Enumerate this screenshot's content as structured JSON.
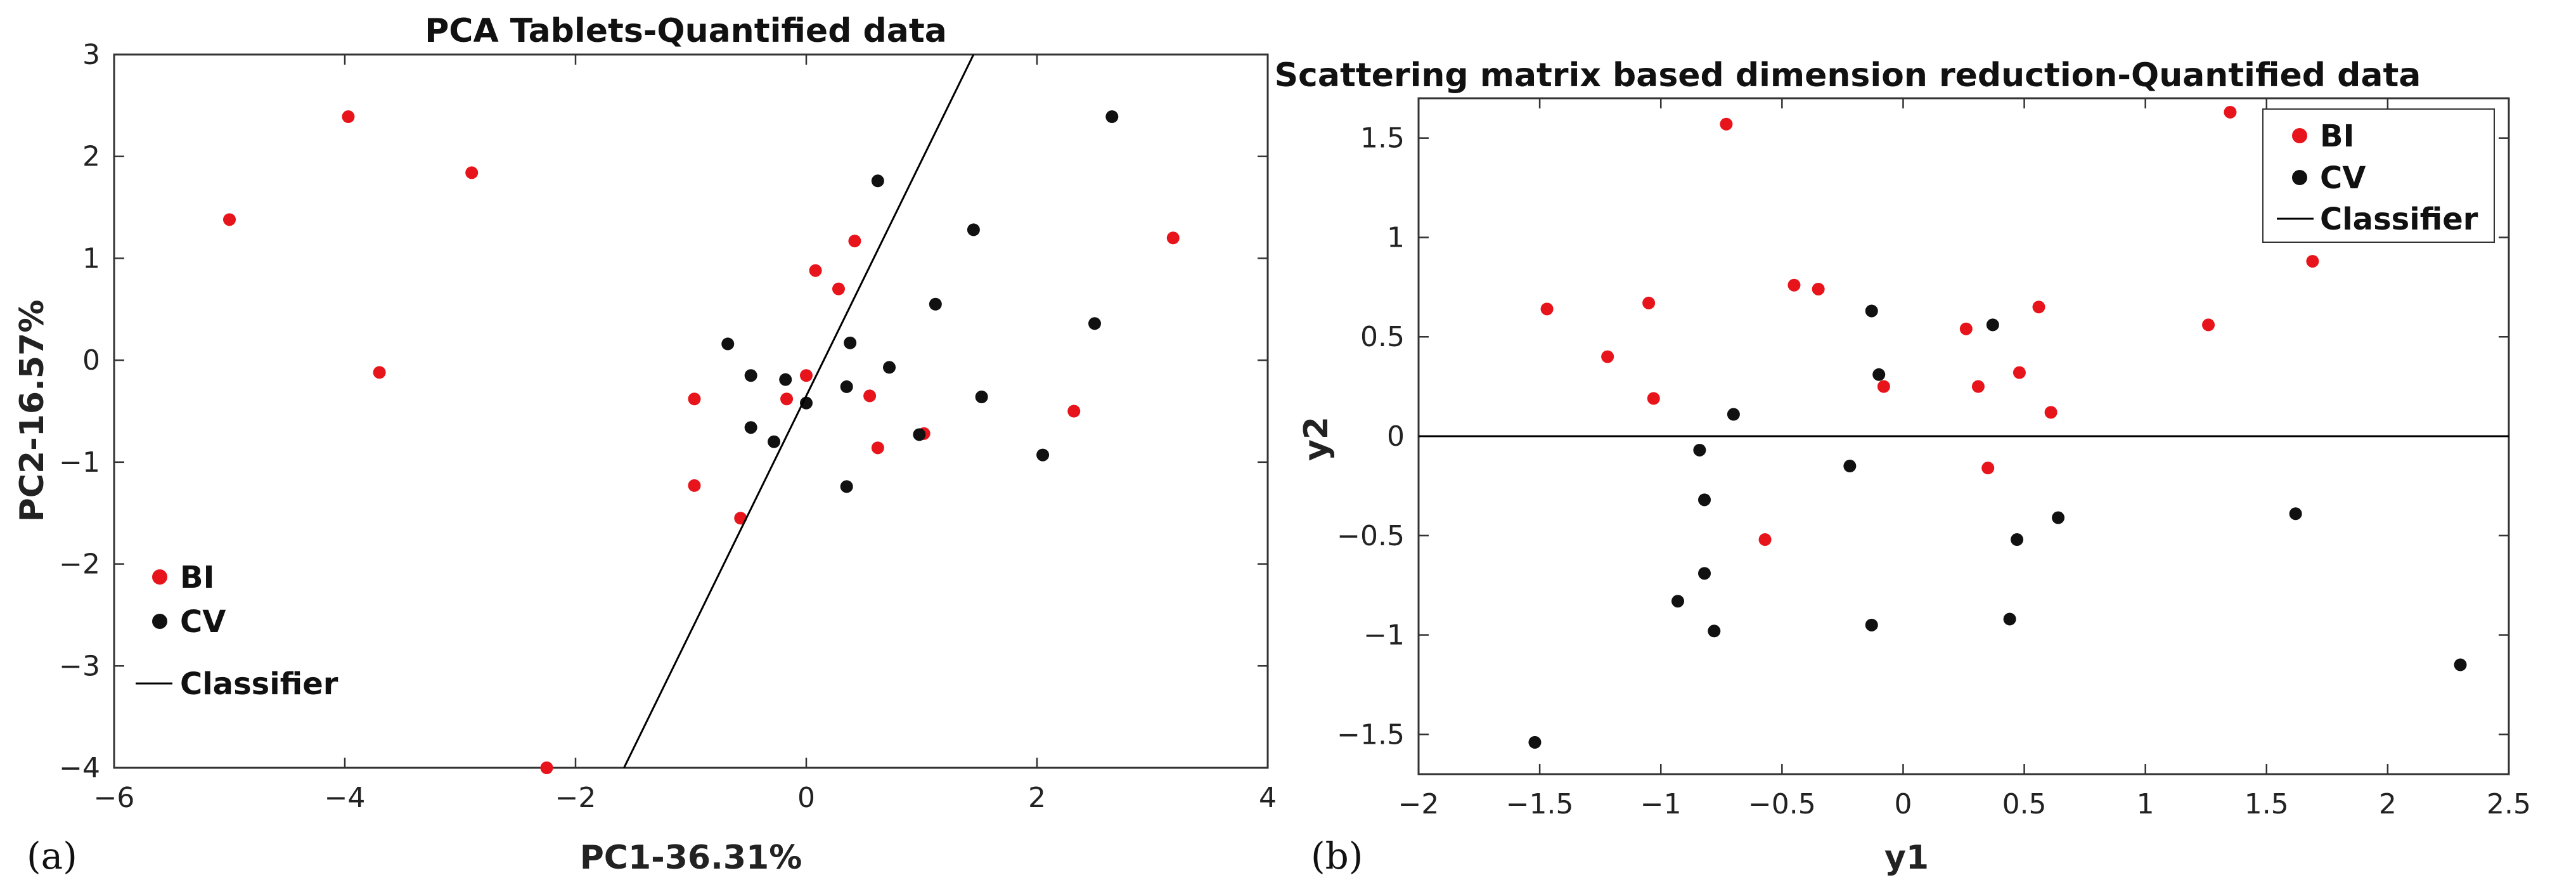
{
  "chart_data": [
    {
      "type": "scatter",
      "panel_label": "(a)",
      "title": "PCA Tablets-Quantified data",
      "xlabel": "PC1-36.31%",
      "ylabel": "PC2-16.57%",
      "xlim": [
        -6,
        4
      ],
      "ylim": [
        -4,
        3
      ],
      "xticks": [
        -6,
        -4,
        -2,
        0,
        2,
        4
      ],
      "yticks": [
        -4,
        -3,
        -2,
        -1,
        0,
        1,
        2,
        3
      ],
      "xtick_labels": [
        "−6",
        "−4",
        "−2",
        "0",
        "2",
        "4"
      ],
      "ytick_labels": [
        "−4",
        "−3",
        "−2",
        "−1",
        "0",
        "1",
        "2",
        "3"
      ],
      "legend_position": "bottom-left",
      "series": [
        {
          "name": "BI",
          "color": "#e8141b",
          "points": [
            [
              -5.0,
              1.38
            ],
            [
              -3.97,
              2.39
            ],
            [
              -2.9,
              1.84
            ],
            [
              -3.7,
              -0.12
            ],
            [
              -2.25,
              -4.0
            ],
            [
              -0.97,
              -0.38
            ],
            [
              -0.97,
              -1.23
            ],
            [
              -0.57,
              -1.55
            ],
            [
              -0.17,
              -0.38
            ],
            [
              0.0,
              -0.15
            ],
            [
              0.08,
              0.88
            ],
            [
              0.28,
              0.7
            ],
            [
              0.42,
              1.17
            ],
            [
              0.55,
              -0.35
            ],
            [
              0.62,
              -0.86
            ],
            [
              1.02,
              -0.72
            ],
            [
              2.32,
              -0.5
            ],
            [
              3.18,
              1.2
            ]
          ]
        },
        {
          "name": "CV",
          "color": "#111111",
          "points": [
            [
              -0.68,
              0.16
            ],
            [
              -0.48,
              -0.15
            ],
            [
              -0.48,
              -0.66
            ],
            [
              -0.28,
              -0.8
            ],
            [
              -0.18,
              -0.19
            ],
            [
              0.0,
              -0.42
            ],
            [
              0.35,
              -0.26
            ],
            [
              0.38,
              0.17
            ],
            [
              0.35,
              -1.24
            ],
            [
              0.62,
              1.76
            ],
            [
              0.72,
              -0.07
            ],
            [
              0.98,
              -0.73
            ],
            [
              1.12,
              0.55
            ],
            [
              1.45,
              1.28
            ],
            [
              1.52,
              -0.36
            ],
            [
              2.05,
              -0.93
            ],
            [
              2.5,
              0.36
            ],
            [
              2.65,
              2.39
            ]
          ]
        },
        {
          "name": "Classifier",
          "type": "line",
          "color": "#000000",
          "points": [
            [
              -1.58,
              -4.0
            ],
            [
              1.45,
              3.0
            ]
          ]
        }
      ]
    },
    {
      "type": "scatter",
      "panel_label": "(b)",
      "title": "Scattering matrix based dimension reduction-Quantified data",
      "xlabel": "y1",
      "ylabel": "y2",
      "xlim": [
        -2,
        2.5
      ],
      "ylim": [
        -1.7,
        1.7
      ],
      "xticks": [
        -2,
        -1.5,
        -1,
        -0.5,
        0,
        0.5,
        1,
        1.5,
        2,
        2.5
      ],
      "yticks": [
        -1.5,
        -1,
        -0.5,
        0,
        0.5,
        1,
        1.5
      ],
      "xtick_labels": [
        "−2",
        "−1.5",
        "−1",
        "−0.5",
        "0",
        "0.5",
        "1",
        "1.5",
        "2",
        "2.5"
      ],
      "ytick_labels": [
        "−1.5",
        "−1",
        "−0.5",
        "0",
        "0.5",
        "1",
        "1.5"
      ],
      "legend_position": "top-right",
      "series": [
        {
          "name": "BI",
          "color": "#e8141b",
          "points": [
            [
              -1.47,
              0.64
            ],
            [
              -1.22,
              0.4
            ],
            [
              -1.05,
              0.67
            ],
            [
              -1.03,
              0.19
            ],
            [
              -0.73,
              1.57
            ],
            [
              -0.57,
              -0.52
            ],
            [
              -0.45,
              0.76
            ],
            [
              -0.35,
              0.74
            ],
            [
              -0.08,
              0.25
            ],
            [
              0.26,
              0.54
            ],
            [
              0.31,
              0.25
            ],
            [
              0.35,
              -0.16
            ],
            [
              0.48,
              0.32
            ],
            [
              0.56,
              0.65
            ],
            [
              0.61,
              0.12
            ],
            [
              1.26,
              0.56
            ],
            [
              1.35,
              1.63
            ],
            [
              1.69,
              0.88
            ]
          ]
        },
        {
          "name": "CV",
          "color": "#111111",
          "points": [
            [
              -1.52,
              -1.54
            ],
            [
              -0.93,
              -0.83
            ],
            [
              -0.84,
              -0.07
            ],
            [
              -0.82,
              -0.32
            ],
            [
              -0.82,
              -0.69
            ],
            [
              -0.78,
              -0.98
            ],
            [
              -0.7,
              0.11
            ],
            [
              -0.22,
              -0.15
            ],
            [
              -0.13,
              0.63
            ],
            [
              -0.13,
              -0.95
            ],
            [
              -0.1,
              0.31
            ],
            [
              0.37,
              0.56
            ],
            [
              0.44,
              -0.92
            ],
            [
              0.47,
              -0.52
            ],
            [
              0.64,
              -0.41
            ],
            [
              1.62,
              -0.39
            ],
            [
              2.3,
              -1.15
            ]
          ]
        },
        {
          "name": "Classifier",
          "type": "line",
          "color": "#000000",
          "points": [
            [
              -2,
              0
            ],
            [
              2.5,
              0
            ]
          ]
        }
      ]
    }
  ]
}
